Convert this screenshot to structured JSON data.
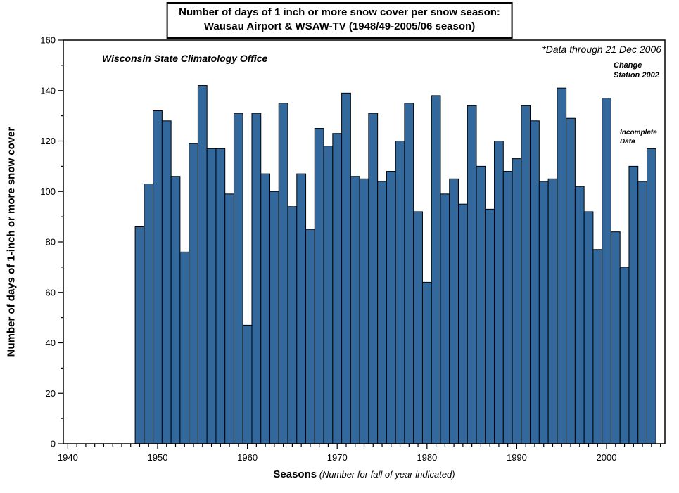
{
  "title": {
    "line1": "Number of days of 1 inch or more snow cover per snow season:",
    "line2": "Wausau Airport & WSAW-TV  (1948/49-2005/06 season)"
  },
  "annotations": {
    "office": "Wisconsin State Climatology Office",
    "data_through": "*Data through 21 Dec 2006",
    "change_station": "Change\nStation 2002",
    "incomplete_data": "Incomplete\nData"
  },
  "axes": {
    "y_label": "Number of days of 1-inch or more snow cover",
    "x_label_bold": "Seasons",
    "x_label_italic": " (Number for fall of year indicated)",
    "x_major_ticks": [
      1940,
      1950,
      1960,
      1970,
      1980,
      1990,
      2000
    ],
    "y_major_ticks": [
      0,
      20,
      40,
      60,
      80,
      100,
      120,
      140,
      160
    ]
  },
  "colors": {
    "bar_fill": "#33689C",
    "bar_stroke": "#000000",
    "frame": "#000000"
  },
  "chart_data": {
    "type": "bar",
    "title": "Number of days of 1 inch or more snow cover per snow season: Wausau Airport & WSAW-TV (1948/49-2005/06 season)",
    "xlabel": "Seasons (Number for fall of year indicated)",
    "ylabel": "Number of days of 1-inch or more snow cover",
    "xlim": [
      1939.5,
      2006.5
    ],
    "ylim": [
      0,
      160
    ],
    "grid": false,
    "legend": "none",
    "categories": [
      1948,
      1949,
      1950,
      1951,
      1952,
      1953,
      1954,
      1955,
      1956,
      1957,
      1958,
      1959,
      1960,
      1961,
      1962,
      1963,
      1964,
      1965,
      1966,
      1967,
      1968,
      1969,
      1970,
      1971,
      1972,
      1973,
      1974,
      1975,
      1976,
      1977,
      1978,
      1979,
      1980,
      1981,
      1982,
      1983,
      1984,
      1985,
      1986,
      1987,
      1988,
      1989,
      1990,
      1991,
      1992,
      1993,
      1994,
      1995,
      1996,
      1997,
      1998,
      1999,
      2000,
      2001,
      2002,
      2003,
      2004,
      2005
    ],
    "values": [
      86,
      103,
      132,
      128,
      106,
      76,
      119,
      142,
      117,
      117,
      99,
      131,
      47,
      131,
      107,
      100,
      135,
      94,
      107,
      85,
      125,
      118,
      123,
      139,
      106,
      105,
      131,
      104,
      108,
      120,
      135,
      92,
      64,
      138,
      99,
      105,
      95,
      134,
      110,
      93,
      120,
      108,
      113,
      134,
      128,
      104,
      105,
      141,
      129,
      102,
      92,
      77,
      137,
      84,
      70,
      110,
      104,
      117
    ]
  }
}
